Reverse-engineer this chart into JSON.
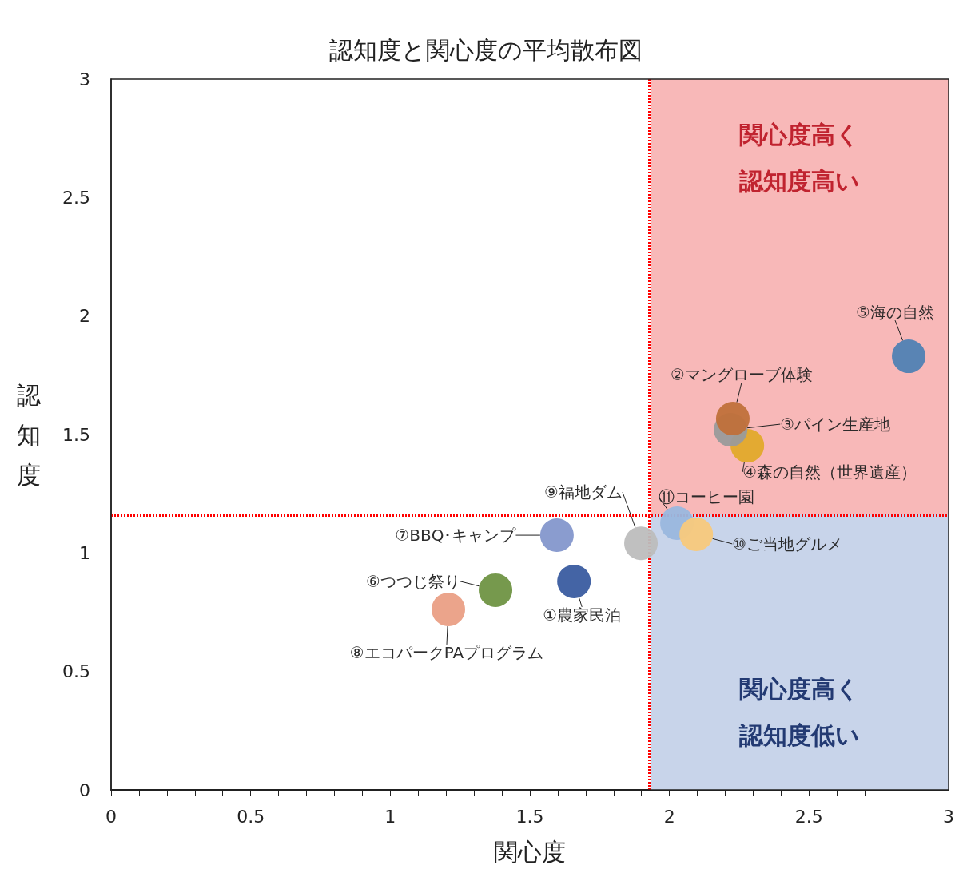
{
  "chart_data": {
    "type": "scatter",
    "title": "認知度と関心度の平均散布図",
    "xlabel": "関心度",
    "ylabel": "認知度",
    "xlim": [
      0,
      3
    ],
    "ylim": [
      0,
      3
    ],
    "xticks": [
      0,
      {
        "value": 0.1,
        "label": null
      },
      {
        "value": 0.2,
        "label": null
      },
      {
        "value": 0.3,
        "label": null
      },
      {
        "value": 0.4,
        "label": null
      },
      0.5,
      {
        "value": 0.6,
        "label": null
      },
      {
        "value": 0.7,
        "label": null
      },
      {
        "value": 0.8,
        "label": null
      },
      {
        "value": 0.9,
        "label": null
      },
      1,
      {
        "value": 1.1,
        "label": null
      },
      {
        "value": 1.2,
        "label": null
      },
      {
        "value": 1.3,
        "label": null
      },
      {
        "value": 1.4,
        "label": null
      },
      1.5,
      {
        "value": 1.6,
        "label": null
      },
      {
        "value": 1.7,
        "label": null
      },
      {
        "value": 1.8,
        "label": null
      },
      {
        "value": 1.9,
        "label": null
      },
      2,
      {
        "value": 2.1,
        "label": null
      },
      {
        "value": 2.2,
        "label": null
      },
      {
        "value": 2.3,
        "label": null
      },
      {
        "value": 2.4,
        "label": null
      },
      2.5,
      {
        "value": 2.6,
        "label": null
      },
      {
        "value": 2.7,
        "label": null
      },
      {
        "value": 2.8,
        "label": null
      },
      {
        "value": 2.9,
        "label": null
      },
      3
    ],
    "yticks": [
      0,
      0.5,
      1,
      1.5,
      2,
      2.5,
      3
    ],
    "grid": false,
    "legend": false,
    "marker": "circle",
    "series": [
      {
        "name": "①農家民泊",
        "color": "#3a5ca0",
        "x": [
          1.658
        ],
        "values": [
          0.88
        ]
      },
      {
        "name": "②マングローブ体験",
        "color": "#c0703a",
        "x": [
          2.227
        ],
        "values": [
          1.567
        ]
      },
      {
        "name": "③パイン生産地",
        "color": "#9a9a9a",
        "x": [
          2.219
        ],
        "values": [
          1.52
        ]
      },
      {
        "name": "④森の自然（世界遺産）",
        "color": "#e1a92a",
        "x": [
          2.279
        ],
        "values": [
          1.453
        ]
      },
      {
        "name": "⑤海の自然",
        "color": "#5081b3",
        "x": [
          2.857
        ],
        "values": [
          1.83
        ]
      },
      {
        "name": "⑥つつじ祭り",
        "color": "#6f9443",
        "x": [
          1.377
        ],
        "values": [
          0.843
        ]
      },
      {
        "name": "⑦BBQ･キャンプ",
        "color": "#8497cc",
        "x": [
          1.597
        ],
        "values": [
          1.075
        ]
      },
      {
        "name": "⑧エコパークPAプログラム",
        "color": "#ea9f85",
        "x": [
          1.208
        ],
        "values": [
          0.762
        ]
      },
      {
        "name": "⑨福地ダム",
        "color": "#bdbdbd",
        "x": [
          1.898
        ],
        "values": [
          1.041
        ]
      },
      {
        "name": "⑩ご当地グルメ",
        "color": "#f8c97c",
        "x": [
          2.096
        ],
        "values": [
          1.079
        ]
      },
      {
        "name": "⑪コーヒー園",
        "color": "#9ab7de",
        "x": [
          2.027
        ],
        "values": [
          1.126
        ]
      }
    ],
    "ref_lines": [
      {
        "axis": "x",
        "value": 1.932,
        "color": "#ff0000",
        "line_style": "dotted"
      },
      {
        "axis": "y",
        "value": 1.163,
        "color": "#ff0000",
        "line_style": "dotted"
      }
    ],
    "bands": [
      {
        "axis": "y",
        "from": 1.163,
        "to": 3,
        "label": "関心度高く認知度高い",
        "color": "#f8b8b8"
      },
      {
        "axis": "y",
        "from": 0,
        "to": 1.163,
        "label": "関心度高く認知度低い",
        "color": "#c8d4ea"
      }
    ]
  }
}
